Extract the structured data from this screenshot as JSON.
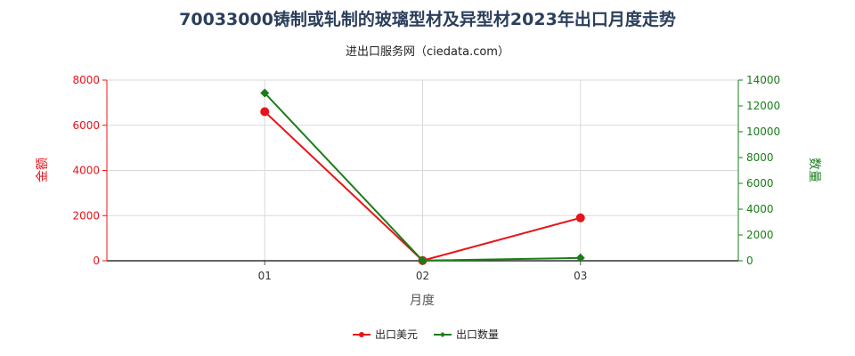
{
  "chart_data": {
    "type": "line",
    "title": "70033000铸制或轧制的玻璃型材及异型材2023年出口月度走势",
    "subtitle": "进出口服务网（ciedata.com）",
    "xlabel": "月度",
    "ylabel_left": "金额",
    "ylabel_right": "数量",
    "categories": [
      "01",
      "02",
      "03"
    ],
    "ylim_left": [
      0,
      8000
    ],
    "yticks_left": [
      "0",
      "2000",
      "4000",
      "6000",
      "8000"
    ],
    "ylim_right": [
      0,
      14000
    ],
    "yticks_right": [
      "0",
      "2000",
      "4000",
      "6000",
      "8000",
      "10000",
      "12000",
      "14000"
    ],
    "grid": true,
    "legend_position": "bottom-center",
    "series": [
      {
        "name": "出口美元",
        "axis": "left",
        "color": "#e8141a",
        "marker": "circle",
        "values": [
          6600,
          10,
          1900
        ]
      },
      {
        "name": "出口数量",
        "axis": "right",
        "color": "#1a7d1a",
        "marker": "diamond",
        "values": [
          13000,
          15,
          220
        ]
      }
    ],
    "colors": {
      "left_axis": "#e8141a",
      "right_axis": "#1a7d1a",
      "title": "#2b3f5c",
      "grid": "#d9d9d9"
    }
  }
}
